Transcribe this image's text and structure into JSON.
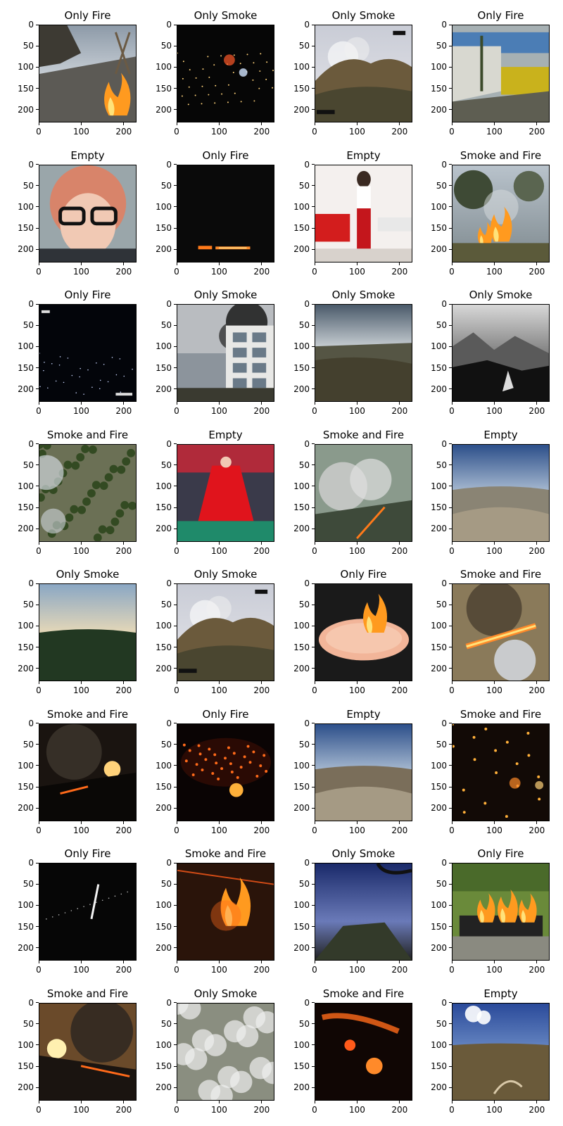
{
  "figure": {
    "panels": [
      {
        "title": "Only Fire",
        "scene": "campfire-beach"
      },
      {
        "title": "Only Smoke",
        "scene": "night-city-glow"
      },
      {
        "title": "Only Smoke",
        "scene": "hill-smoke-cam"
      },
      {
        "title": "Only Fire",
        "scene": "street-gas-cylinders"
      },
      {
        "title": "Empty",
        "scene": "portrait-glasses"
      },
      {
        "title": "Only Fire",
        "scene": "dark-fire-line"
      },
      {
        "title": "Empty",
        "scene": "woman-red-pants"
      },
      {
        "title": "Smoke and Fire",
        "scene": "grass-fire-trees"
      },
      {
        "title": "Only Fire",
        "scene": "night-lights-dark"
      },
      {
        "title": "Only Smoke",
        "scene": "building-black-smoke"
      },
      {
        "title": "Only Smoke",
        "scene": "valley-overcast"
      },
      {
        "title": "Only Smoke",
        "scene": "misty-mountains-bw"
      },
      {
        "title": "Smoke and Fire",
        "scene": "forest-aerial-smoke"
      },
      {
        "title": "Empty",
        "scene": "red-dress-stage"
      },
      {
        "title": "Smoke and Fire",
        "scene": "smoke-plume-fire-line"
      },
      {
        "title": "Empty",
        "scene": "fisheye-landscape"
      },
      {
        "title": "Only Smoke",
        "scene": "fisheye-sunset-valley"
      },
      {
        "title": "Only Smoke",
        "scene": "hill-smoke-cam-2"
      },
      {
        "title": "Only Fire",
        "scene": "candle-dish"
      },
      {
        "title": "Smoke and Fire",
        "scene": "wildfire-smoke-flames"
      },
      {
        "title": "Smoke and Fire",
        "scene": "sunset-fire-hill"
      },
      {
        "title": "Only Fire",
        "scene": "crater-fire"
      },
      {
        "title": "Empty",
        "scene": "fisheye-dry-hills"
      },
      {
        "title": "Smoke and Fire",
        "scene": "embers-night"
      },
      {
        "title": "Only Fire",
        "scene": "night-fire-streak"
      },
      {
        "title": "Smoke and Fire",
        "scene": "bonfire-aerial"
      },
      {
        "title": "Only Smoke",
        "scene": "fisheye-blue-sky-rig"
      },
      {
        "title": "Only Fire",
        "scene": "fire-pit-lawn"
      },
      {
        "title": "Smoke and Fire",
        "scene": "sunset-smoke-fire-line"
      },
      {
        "title": "Only Smoke",
        "scene": "white-smoke-aerial"
      },
      {
        "title": "Smoke and Fire",
        "scene": "night-aerial-fires"
      },
      {
        "title": "Empty",
        "scene": "fisheye-clouds-valley"
      }
    ],
    "axes": {
      "y_ticks": [
        "0",
        "50",
        "100",
        "150",
        "200"
      ],
      "x_ticks": [
        "0",
        "100",
        "200"
      ]
    }
  }
}
